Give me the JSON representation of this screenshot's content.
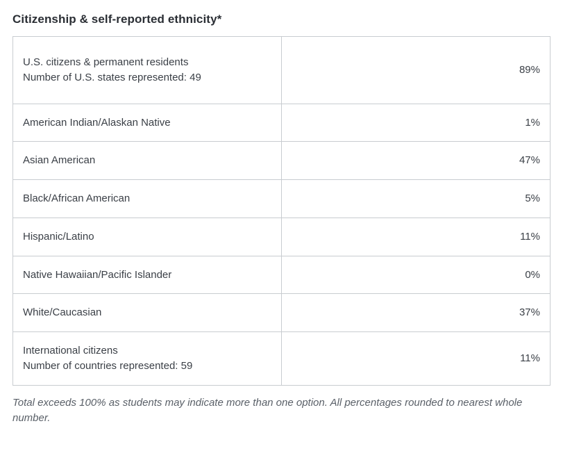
{
  "title": "Citizenship & self-reported ethnicity*",
  "table": {
    "border_color": "#c8ccd0",
    "text_color": "#3a3f46",
    "font_size_pt": 11,
    "rows": [
      {
        "label_line1": "U.S. citizens & permanent residents",
        "label_line2": "Number of U.S. states represented: 49",
        "value": "89%",
        "tall": true
      },
      {
        "label_line1": "American Indian/Alaskan Native",
        "label_line2": "",
        "value": "1%",
        "tall": false
      },
      {
        "label_line1": "Asian American",
        "label_line2": "",
        "value": "47%",
        "tall": false
      },
      {
        "label_line1": "Black/African American",
        "label_line2": "",
        "value": "5%",
        "tall": false
      },
      {
        "label_line1": "Hispanic/Latino",
        "label_line2": "",
        "value": "11%",
        "tall": false
      },
      {
        "label_line1": "Native Hawaiian/Pacific Islander",
        "label_line2": "",
        "value": "0%",
        "tall": false
      },
      {
        "label_line1": "White/Caucasian",
        "label_line2": "",
        "value": "37%",
        "tall": false
      },
      {
        "label_line1": "International citizens",
        "label_line2": "Number of countries represented: 59",
        "value": "11%",
        "tall": false
      }
    ]
  },
  "footnote": "Total exceeds 100% as students may indicate more than one option. All percentages rounded to nearest whole number."
}
